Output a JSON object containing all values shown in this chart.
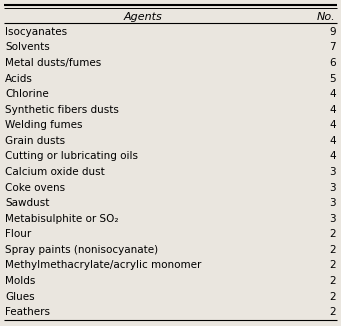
{
  "agents": [
    "Isocyanates",
    "Solvents",
    "Metal dusts/fumes",
    "Acids",
    "Chlorine",
    "Synthetic fibers dusts",
    "Welding fumes",
    "Grain dusts",
    "Cutting or lubricating oils",
    "Calcium oxide dust",
    "Coke ovens",
    "Sawdust",
    "Metabisulphite or SO₂",
    "Flour",
    "Spray paints (nonisocyanate)",
    "Methylmethacrylate/acrylic monomer",
    "Molds",
    "Glues",
    "Feathers"
  ],
  "numbers": [
    9,
    7,
    6,
    5,
    4,
    4,
    4,
    4,
    4,
    3,
    3,
    3,
    3,
    2,
    2,
    2,
    2,
    2,
    2
  ],
  "col_header_agents": "Agents",
  "col_header_no": "No.",
  "bg_color": "#eae6df",
  "text_color": "#000000",
  "header_fontsize": 8,
  "row_fontsize": 7.5
}
